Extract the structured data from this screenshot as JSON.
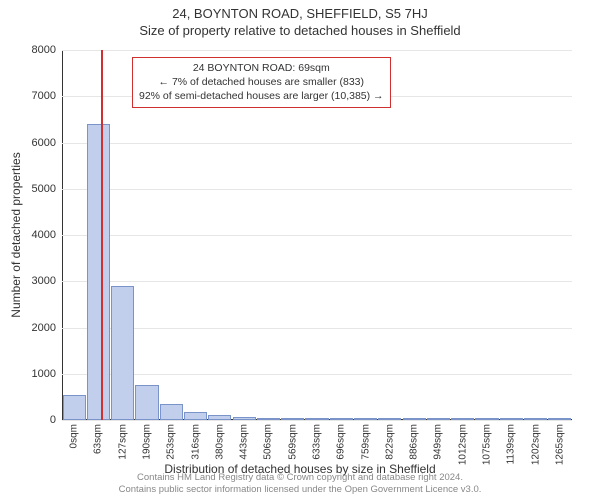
{
  "title_main": "24, BOYNTON ROAD, SHEFFIELD, S5 7HJ",
  "title_sub": "Size of property relative to detached houses in Sheffield",
  "y_axis_title": "Number of detached properties",
  "x_axis_title": "Distribution of detached houses by size in Sheffield",
  "chart": {
    "type": "bar",
    "ylim": [
      0,
      8000
    ],
    "ytick_step": 1000,
    "bar_fill": "#c1cfec",
    "bar_border": "#7a94c9",
    "grid_color": "#e6e6e6",
    "background_color": "#ffffff",
    "bar_width_ratio": 0.95,
    "categories": [
      "0sqm",
      "63sqm",
      "127sqm",
      "190sqm",
      "253sqm",
      "316sqm",
      "380sqm",
      "443sqm",
      "506sqm",
      "569sqm",
      "633sqm",
      "696sqm",
      "759sqm",
      "822sqm",
      "886sqm",
      "949sqm",
      "1012sqm",
      "1075sqm",
      "1139sqm",
      "1202sqm",
      "1265sqm"
    ],
    "values": [
      550,
      6400,
      2900,
      750,
      350,
      180,
      110,
      70,
      50,
      35,
      25,
      20,
      10,
      10,
      8,
      6,
      5,
      4,
      4,
      3,
      2
    ],
    "marker": {
      "x_sqm": 69,
      "color": "#d03030"
    }
  },
  "info_box": {
    "line1": "24 BOYNTON ROAD: 69sqm",
    "line2": "← 7% of detached houses are smaller (833)",
    "line3": "92% of semi-detached houses are larger (10,385) →",
    "border_color": "#d03030",
    "fontsize": 10.5
  },
  "attribution": {
    "line1": "Contains HM Land Registry data © Crown copyright and database right 2024.",
    "line2": "Contains public sector information licensed under the Open Government Licence v3.0."
  }
}
